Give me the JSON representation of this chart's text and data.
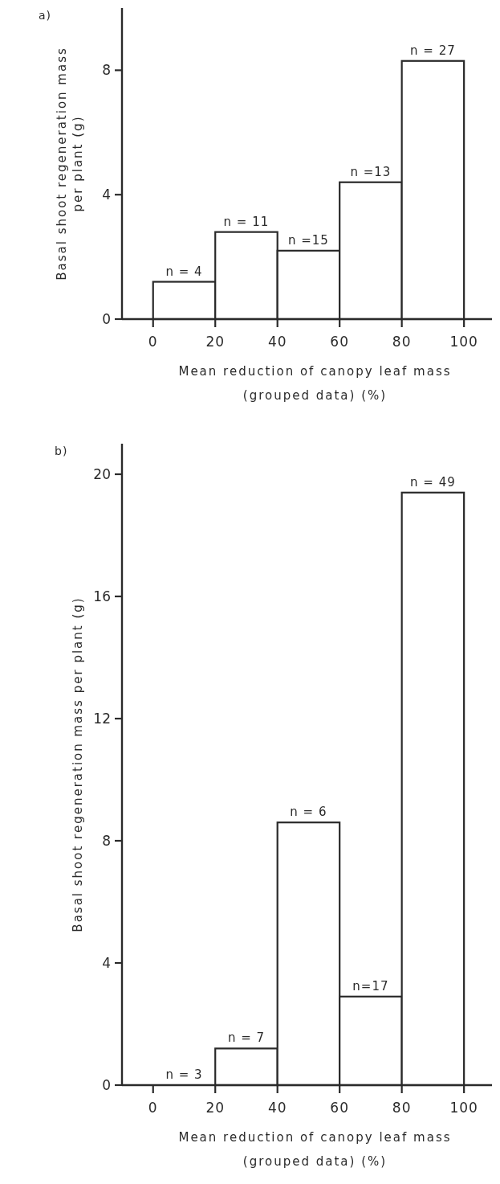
{
  "chart_data": [
    {
      "type": "histogram",
      "title": "a)",
      "xlabel": "Mean reduction of canopy leaf mass (grouped data) (%)",
      "ylabel": "Basal shoot regeneration mass per plant (g)",
      "bins": [
        0,
        20,
        40,
        60,
        80,
        100
      ],
      "values": [
        1.2,
        2.8,
        2.2,
        4.4,
        8.3
      ],
      "color": "#ffffff",
      "xlim": [
        -10,
        109
      ],
      "ylim": [
        0,
        10
      ],
      "xticks": [
        0,
        20,
        40,
        60,
        80,
        100
      ],
      "yticks": [
        0,
        4,
        8
      ],
      "annotations": [
        {
          "text": "n = 4",
          "x": 10,
          "y": 1.2
        },
        {
          "text": "n = 11",
          "x": 30,
          "y": 2.8
        },
        {
          "text": "n =15",
          "x": 50,
          "y": 2.2
        },
        {
          "text": "n =13",
          "x": 70,
          "y": 4.4
        },
        {
          "text": "n = 27",
          "x": 90,
          "y": 8.3
        }
      ]
    },
    {
      "type": "histogram",
      "title": "b)",
      "xlabel": "Mean reduction of canopy leaf mass (grouped data) (%)",
      "ylabel": "Basal shoot regeneration mass per plant (g)",
      "bins": [
        0,
        20,
        40,
        60,
        80,
        100
      ],
      "values": [
        0,
        1.2,
        8.6,
        2.9,
        19.4
      ],
      "color": "#ffffff",
      "xlim": [
        -10,
        109
      ],
      "ylim": [
        0,
        21
      ],
      "xticks": [
        0,
        20,
        40,
        60,
        80,
        100
      ],
      "yticks": [
        0,
        4,
        8,
        12,
        16,
        20
      ],
      "annotations": [
        {
          "text": "n = 3",
          "x": 10,
          "y": 0
        },
        {
          "text": "n = 7",
          "x": 30,
          "y": 1.2
        },
        {
          "text": "n = 6",
          "x": 50,
          "y": 8.6
        },
        {
          "text": "n=17",
          "x": 70,
          "y": 2.9
        },
        {
          "text": "n = 49",
          "x": 90,
          "y": 19.4
        }
      ]
    }
  ]
}
